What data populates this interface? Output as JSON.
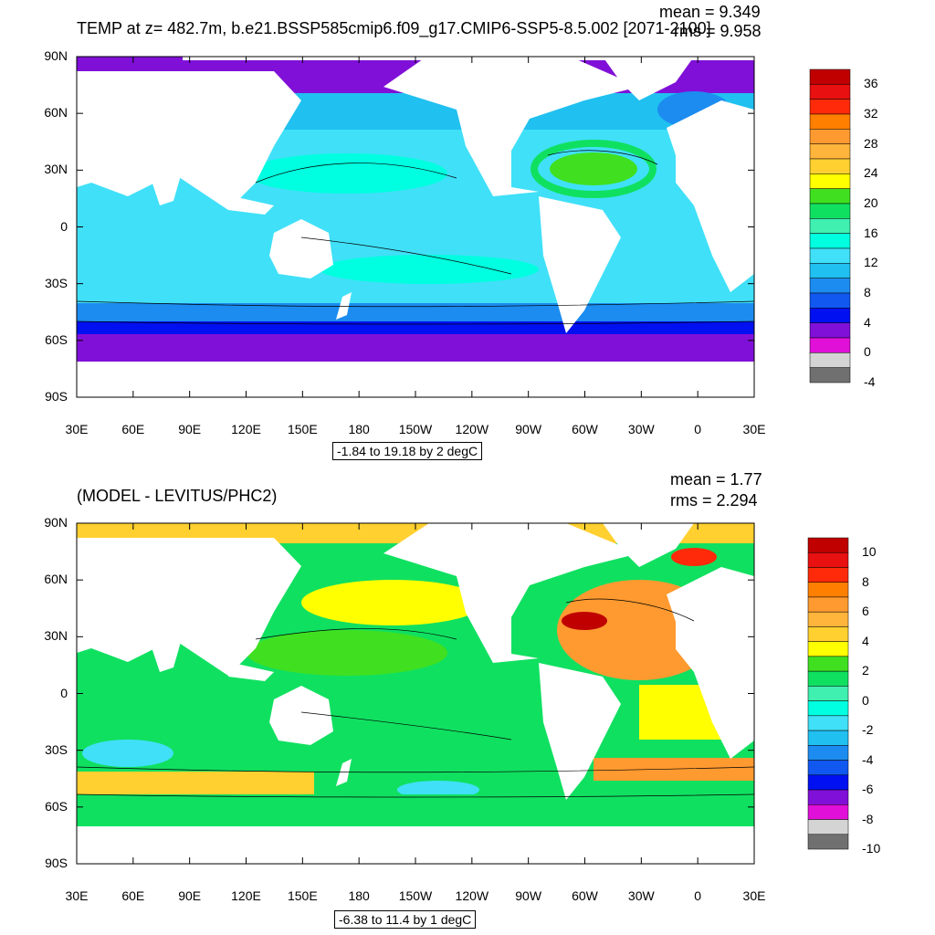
{
  "colors": {
    "sea_ice": "#ffffff",
    "land": "#ffffff",
    "contour": "#000000"
  },
  "top_panel": {
    "title": "TEMP at z= 482.7m, b.e21.BSSP585cmip6.f09_g17.CMIP6-SSP5-8.5.002 [2071-2100]",
    "mean": "mean = 9.349",
    "rms": "rms = 9.958",
    "range_label": "-1.84 to 19.18 by 2 degC",
    "lat_labels": [
      "90N",
      "60N",
      "30N",
      "0",
      "30S",
      "60S",
      "90S"
    ],
    "lon_labels": [
      "30E",
      "60E",
      "90E",
      "120E",
      "150E",
      "180",
      "150W",
      "120W",
      "90W",
      "60W",
      "30W",
      "0",
      "30E"
    ],
    "colorbar": {
      "labels": [
        "36",
        "32",
        "28",
        "24",
        "20",
        "16",
        "12",
        "8",
        "4",
        "0",
        "-4"
      ],
      "colors": [
        "#c00000",
        "#e81010",
        "#ff2a0a",
        "#ff7f00",
        "#ff9a30",
        "#ffb43c",
        "#ffd030",
        "#ffff00",
        "#40e020",
        "#10e060",
        "#40f0b0",
        "#00ffe0",
        "#40e0f8",
        "#20c0f0",
        "#1c8cf0",
        "#1058f0",
        "#0010f0",
        "#8010d8",
        "#e010d8",
        "#d4d4d4",
        "#707070"
      ]
    }
  },
  "bottom_panel": {
    "title": "(MODEL - LEVITUS/PHC2)",
    "mean": "mean = 1.77",
    "rms": "rms = 2.294",
    "range_label": "-6.38 to 11.4 by 1 degC",
    "lat_labels": [
      "90N",
      "60N",
      "30N",
      "0",
      "30S",
      "60S",
      "90S"
    ],
    "lon_labels": [
      "30E",
      "60E",
      "90E",
      "120E",
      "150E",
      "180",
      "150W",
      "120W",
      "90W",
      "60W",
      "30W",
      "0",
      "30E"
    ],
    "colorbar": {
      "labels": [
        "10",
        "8",
        "6",
        "4",
        "2",
        "0",
        "-2",
        "-4",
        "-6",
        "-8",
        "-10"
      ],
      "colors": [
        "#c00000",
        "#e81010",
        "#ff2a0a",
        "#ff7f00",
        "#ff9a30",
        "#ffb43c",
        "#ffd030",
        "#ffff00",
        "#40e020",
        "#10e060",
        "#40f0b0",
        "#00ffe0",
        "#40e0f8",
        "#20c0f0",
        "#1c8cf0",
        "#1058f0",
        "#0010f0",
        "#8010d8",
        "#e010d8",
        "#d4d4d4",
        "#707070"
      ]
    }
  }
}
